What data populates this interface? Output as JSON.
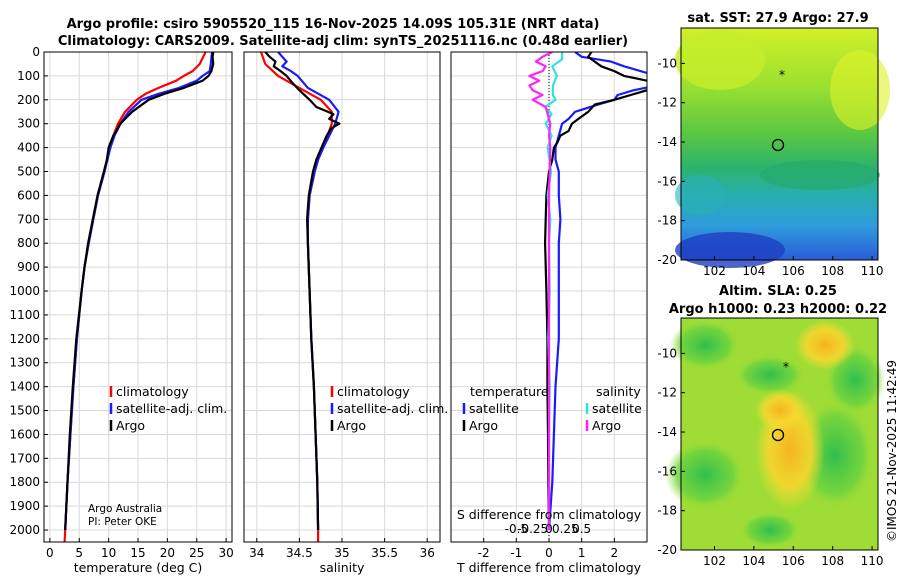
{
  "title_line1": "Argo profile: csiro 5905520_115 16-Nov-2025 14.09S 105.31E (NRT data)",
  "title_line2": "Climatology: CARS2009. Satellite-adj clim: synTS_20251116.nc (0.48d earlier)",
  "depth_ticks": [
    "0",
    "100",
    "200",
    "300",
    "400",
    "500",
    "600",
    "700",
    "800",
    "900",
    "1000",
    "1100",
    "1200",
    "1300",
    "1400",
    "1500",
    "1600",
    "1700",
    "1800",
    "1900",
    "2000"
  ],
  "colors": {
    "climatology": "#ff0000",
    "satellite": "#1a1aff",
    "argo": "#000000",
    "sal_sat": "#33e0e0",
    "sal_argo": "#ff22ff"
  },
  "credit": {
    "line1": "Argo Australia",
    "line2": "PI: Peter OKE"
  },
  "watermark": "©IMOS 21-Nov-2025 11:42:49",
  "chart_data": [
    {
      "type": "line",
      "name": "temperature",
      "xlabel": "temperature (deg C)",
      "ylabel": "",
      "xlim": [
        -1,
        31
      ],
      "ylim": [
        2050,
        0
      ],
      "xticks": [
        "0",
        "5",
        "10",
        "15",
        "20",
        "25",
        "30"
      ],
      "legend": [
        "climatology",
        "satellite-adj. clim.",
        "Argo"
      ],
      "legend_position": "lower-right",
      "series": [
        {
          "name": "climatology",
          "depth": [
            0,
            50,
            80,
            100,
            120,
            150,
            175,
            200,
            250,
            300,
            350,
            400,
            500,
            600,
            700,
            800,
            900,
            1000,
            1200,
            1400,
            1600,
            1800,
            2000,
            2050
          ],
          "values": [
            26.5,
            25.5,
            24.3,
            22.8,
            21.5,
            18.5,
            16.3,
            14.8,
            12.8,
            11.6,
            10.8,
            10.2,
            9.3,
            8.2,
            7.4,
            6.6,
            5.9,
            5.4,
            4.6,
            4.0,
            3.5,
            3.0,
            2.6,
            2.5
          ]
        },
        {
          "name": "satellite-adj. clim.",
          "depth": [
            0,
            50,
            80,
            100,
            120,
            150,
            175,
            200,
            250,
            300,
            350,
            400,
            500,
            600,
            700,
            800,
            900,
            1000,
            1200,
            1400,
            1600,
            1800,
            2000
          ],
          "values": [
            27.6,
            27.4,
            27.2,
            26.0,
            25.0,
            22.0,
            18.5,
            15.6,
            13.4,
            12.0,
            11.0,
            10.3,
            9.3,
            8.2,
            7.4,
            6.6,
            5.9,
            5.4,
            4.6,
            4.0,
            3.5,
            3.0,
            2.6
          ]
        },
        {
          "name": "Argo",
          "depth": [
            0,
            20,
            50,
            80,
            100,
            120,
            150,
            175,
            200,
            250,
            300,
            330,
            350,
            400,
            450,
            500,
            600,
            700,
            800,
            900,
            1000,
            1200,
            1400,
            1600,
            1800,
            2000
          ],
          "values": [
            27.8,
            27.7,
            27.8,
            27.5,
            27.0,
            26.0,
            22.8,
            19.5,
            16.8,
            14.0,
            12.0,
            11.3,
            10.8,
            10.0,
            9.7,
            9.2,
            8.1,
            7.3,
            6.5,
            5.9,
            5.4,
            4.5,
            3.9,
            3.4,
            3.0,
            2.6
          ]
        }
      ]
    },
    {
      "type": "line",
      "name": "salinity",
      "xlabel": "salinity",
      "xlim": [
        33.85,
        36.15
      ],
      "ylim": [
        2050,
        0
      ],
      "xticks": [
        "34",
        "34.5",
        "35",
        "35.5",
        "36"
      ],
      "legend": [
        "climatology",
        "satellite-adj. clim.",
        "Argo"
      ],
      "legend_position": "lower-right",
      "series": [
        {
          "name": "climatology",
          "depth": [
            0,
            50,
            100,
            150,
            200,
            250,
            300,
            350,
            400,
            450,
            500,
            600,
            700,
            800,
            1000,
            1200,
            1400,
            1600,
            1800,
            2000,
            2050
          ],
          "values": [
            34.05,
            34.1,
            34.25,
            34.5,
            34.75,
            34.88,
            34.88,
            34.83,
            34.78,
            34.72,
            34.68,
            34.62,
            34.6,
            34.6,
            34.62,
            34.64,
            34.67,
            34.69,
            34.71,
            34.72,
            34.72
          ]
        },
        {
          "name": "satellite-adj. clim.",
          "depth": [
            0,
            20,
            40,
            60,
            80,
            100,
            150,
            200,
            250,
            300,
            350,
            400,
            450,
            500,
            600,
            700,
            800,
            1000,
            1200,
            1400,
            1600,
            1800,
            2000
          ],
          "values": [
            34.25,
            34.3,
            34.35,
            34.3,
            34.4,
            34.48,
            34.6,
            34.85,
            34.96,
            34.92,
            34.85,
            34.78,
            34.72,
            34.68,
            34.62,
            34.6,
            34.6,
            34.62,
            34.64,
            34.67,
            34.69,
            34.71,
            34.72
          ]
        },
        {
          "name": "Argo",
          "depth": [
            0,
            20,
            40,
            60,
            80,
            100,
            130,
            160,
            200,
            230,
            260,
            280,
            300,
            320,
            350,
            400,
            450,
            500,
            600,
            700,
            800,
            1000,
            1200,
            1400,
            1600,
            1800,
            2000
          ],
          "values": [
            34.1,
            34.15,
            34.22,
            34.2,
            34.28,
            34.35,
            34.42,
            34.5,
            34.62,
            34.7,
            34.9,
            34.85,
            34.97,
            34.87,
            34.82,
            34.76,
            34.7,
            34.66,
            34.61,
            34.59,
            34.6,
            34.62,
            34.64,
            34.67,
            34.69,
            34.71,
            34.72
          ]
        }
      ]
    },
    {
      "type": "line",
      "name": "differences",
      "xlabel": "T difference from climatology",
      "xlabel_top": "S difference from climatology",
      "xlim": [
        -3,
        3
      ],
      "ylim": [
        2050,
        0
      ],
      "xticks": [
        "-2",
        "-1",
        "0",
        "1",
        "2"
      ],
      "xticks_sal": [
        "-0.5",
        "-0.25",
        "0",
        "0.25",
        "0.5"
      ],
      "legend": {
        "temperature_header": "temperature",
        "salinity_header": "salinity",
        "satellite": "satellite",
        "argo": "Argo"
      },
      "legend_position": "lower-center",
      "series": [
        {
          "name": "temperature satellite",
          "depth": [
            0,
            20,
            40,
            60,
            80,
            100,
            120,
            140,
            160,
            180,
            200,
            220,
            250,
            280,
            300,
            350,
            400,
            450,
            500,
            600,
            700,
            800,
            900,
            1000,
            1200,
            1400,
            1600,
            1800,
            2000
          ],
          "values": [
            0.8,
            1.0,
            1.9,
            2.3,
            2.8,
            3.3,
            3.4,
            3.3,
            2.6,
            2.1,
            2.0,
            1.5,
            0.8,
            0.6,
            0.4,
            0.3,
            0.2,
            0.2,
            0.3,
            0.3,
            0.35,
            0.3,
            0.3,
            0.3,
            0.3,
            0.2,
            0.15,
            0.1,
            0.0
          ]
        },
        {
          "name": "temperature argo",
          "depth": [
            0,
            20,
            40,
            60,
            80,
            100,
            120,
            140,
            160,
            180,
            200,
            220,
            250,
            280,
            300,
            330,
            350,
            380,
            400,
            450,
            500,
            600,
            700,
            800,
            1000,
            1200,
            1400,
            1600,
            1800,
            2000
          ],
          "values": [
            1.3,
            1.2,
            1.4,
            1.6,
            2.0,
            2.3,
            3.0,
            3.5,
            3.0,
            2.5,
            2.0,
            1.4,
            1.2,
            0.9,
            0.7,
            0.6,
            0.35,
            0.25,
            0.15,
            0.1,
            0.0,
            -0.08,
            -0.1,
            -0.12,
            -0.08,
            -0.05,
            -0.05,
            -0.03,
            -0.02,
            0.0
          ]
        },
        {
          "name": "salinity satellite",
          "depth": [
            0,
            30,
            60,
            100,
            140,
            180,
            200,
            230,
            260,
            300,
            350,
            400,
            500,
            600,
            700,
            800,
            1000,
            1200,
            1400,
            1600,
            1800,
            2000
          ],
          "values": [
            0.2,
            0.2,
            0.05,
            0.12,
            0.06,
            0.06,
            0.1,
            -0.06,
            0.04,
            -0.05,
            0.04,
            -0.02,
            0.03,
            -0.02,
            0.02,
            0.0,
            0.01,
            -0.01,
            0.01,
            0.0,
            0.0,
            0.0
          ]
        },
        {
          "name": "salinity argo",
          "depth": [
            0,
            20,
            40,
            60,
            80,
            100,
            120,
            140,
            160,
            180,
            200,
            230,
            260,
            300,
            350,
            400,
            500,
            600,
            700,
            800,
            1000,
            1200,
            1400,
            1600,
            1800,
            2000
          ],
          "values": [
            0.05,
            -0.1,
            -0.2,
            -0.05,
            -0.1,
            -0.3,
            -0.15,
            -0.3,
            -0.25,
            -0.1,
            -0.25,
            -0.05,
            -0.02,
            0.02,
            0.0,
            0.02,
            0.01,
            0.0,
            0.0,
            0.0,
            0.0,
            0.0,
            0.0,
            0.0,
            0.0,
            0.0
          ]
        }
      ]
    },
    {
      "type": "heatmap",
      "name": "satellite SST map",
      "title": "sat. SST: 27.9  Argo: 27.9",
      "xlim": [
        100.3,
        110.3
      ],
      "ylim": [
        -20,
        -8.2
      ],
      "xticks": [
        "102",
        "104",
        "106",
        "108",
        "110"
      ],
      "yticks": [
        "-10",
        "-12",
        "-14",
        "-16",
        "-18",
        "-20"
      ],
      "argo_position": [
        105.31,
        -14.09
      ]
    },
    {
      "type": "heatmap",
      "name": "altimetry SLA map",
      "title_line1": "Altim. SLA: 0.25",
      "title_line2": "Argo h1000: 0.23 h2000: 0.22",
      "xlim": [
        100.3,
        110.3
      ],
      "ylim": [
        -20,
        -8.2
      ],
      "xticks": [
        "102",
        "104",
        "106",
        "108",
        "110"
      ],
      "yticks": [
        "-10",
        "-12",
        "-14",
        "-16",
        "-18",
        "-20"
      ],
      "argo_position": [
        105.31,
        -14.09
      ]
    }
  ]
}
